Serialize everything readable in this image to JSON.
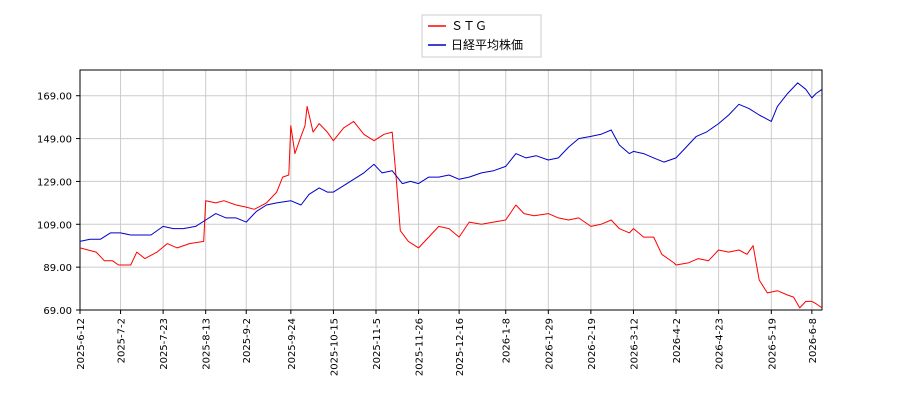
{
  "chart_data": {
    "type": "line",
    "title": "",
    "xlabel": "",
    "ylabel": "",
    "ylim": [
      69.0,
      181.0
    ],
    "yticks": [
      69.0,
      89.0,
      109.0,
      129.0,
      149.0,
      169.0
    ],
    "ytick_labels": [
      "69.00",
      "89.00",
      "109.00",
      "129.00",
      "149.00",
      "169.00"
    ],
    "xlim": [
      "2025-06-12",
      "2026-06-13"
    ],
    "xtick_labels": [
      "2025-6-12",
      "2025-7-2",
      "2025-7-23",
      "2025-8-13",
      "2025-9-2",
      "2025-9-24",
      "2025-10-15",
      "2025-11-5",
      "2025-11-26",
      "2025-12-16",
      "2026-1-8",
      "2026-1-29",
      "2026-2-19",
      "2026-3-12",
      "2026-4-2",
      "2026-4-23",
      "2026-5-19",
      "2026-6-8"
    ],
    "xtick_dates": [
      "2025-06-12",
      "2025-07-02",
      "2025-07-23",
      "2025-08-13",
      "2025-09-02",
      "2025-09-24",
      "2025-10-15",
      "2025-11-05",
      "2025-11-26",
      "2025-12-16",
      "2026-01-08",
      "2026-01-29",
      "2026-02-19",
      "2026-03-12",
      "2026-04-02",
      "2026-04-23",
      "2026-05-19",
      "2026-06-08"
    ],
    "grid": true,
    "legend_position": "top-center",
    "series": [
      {
        "name": "ＳＴＧ",
        "color": "#ff0000",
        "points": [
          [
            "2025-06-12",
            98
          ],
          [
            "2025-06-20",
            96
          ],
          [
            "2025-06-24",
            92
          ],
          [
            "2025-06-28",
            92
          ],
          [
            "2025-07-01",
            90
          ],
          [
            "2025-07-07",
            90
          ],
          [
            "2025-07-10",
            96
          ],
          [
            "2025-07-14",
            93
          ],
          [
            "2025-07-20",
            96
          ],
          [
            "2025-07-25",
            100
          ],
          [
            "2025-07-30",
            98
          ],
          [
            "2025-08-05",
            100
          ],
          [
            "2025-08-12",
            101
          ],
          [
            "2025-08-13",
            120
          ],
          [
            "2025-08-18",
            119
          ],
          [
            "2025-08-22",
            120
          ],
          [
            "2025-08-28",
            118
          ],
          [
            "2025-09-02",
            117
          ],
          [
            "2025-09-06",
            116
          ],
          [
            "2025-09-12",
            119
          ],
          [
            "2025-09-17",
            124
          ],
          [
            "2025-09-20",
            131
          ],
          [
            "2025-09-23",
            132
          ],
          [
            "2025-09-24",
            155
          ],
          [
            "2025-09-26",
            142
          ],
          [
            "2025-09-29",
            150
          ],
          [
            "2025-10-01",
            155
          ],
          [
            "2025-10-02",
            164
          ],
          [
            "2025-10-05",
            152
          ],
          [
            "2025-10-08",
            156
          ],
          [
            "2025-10-12",
            152
          ],
          [
            "2025-10-15",
            148
          ],
          [
            "2025-10-20",
            154
          ],
          [
            "2025-10-25",
            157
          ],
          [
            "2025-10-30",
            151
          ],
          [
            "2025-11-04",
            148
          ],
          [
            "2025-11-09",
            151
          ],
          [
            "2025-11-13",
            152
          ],
          [
            "2025-11-15",
            130
          ],
          [
            "2025-11-17",
            106
          ],
          [
            "2025-11-21",
            101
          ],
          [
            "2025-11-26",
            98
          ],
          [
            "2025-12-01",
            103
          ],
          [
            "2025-12-06",
            108
          ],
          [
            "2025-12-11",
            107
          ],
          [
            "2025-12-16",
            103
          ],
          [
            "2025-12-21",
            110
          ],
          [
            "2025-12-27",
            109
          ],
          [
            "2026-01-02",
            110
          ],
          [
            "2026-01-08",
            111
          ],
          [
            "2026-01-13",
            118
          ],
          [
            "2026-01-17",
            114
          ],
          [
            "2026-01-22",
            113
          ],
          [
            "2026-01-29",
            114
          ],
          [
            "2026-02-03",
            112
          ],
          [
            "2026-02-08",
            111
          ],
          [
            "2026-02-13",
            112
          ],
          [
            "2026-02-19",
            108
          ],
          [
            "2026-02-24",
            109
          ],
          [
            "2026-03-01",
            111
          ],
          [
            "2026-03-05",
            107
          ],
          [
            "2026-03-10",
            105
          ],
          [
            "2026-03-12",
            107
          ],
          [
            "2026-03-17",
            103
          ],
          [
            "2026-03-22",
            103
          ],
          [
            "2026-03-26",
            95
          ],
          [
            "2026-04-01",
            91
          ],
          [
            "2026-04-02",
            90
          ],
          [
            "2026-04-08",
            91
          ],
          [
            "2026-04-13",
            93
          ],
          [
            "2026-04-18",
            92
          ],
          [
            "2026-04-23",
            97
          ],
          [
            "2026-04-28",
            96
          ],
          [
            "2026-05-03",
            97
          ],
          [
            "2026-05-07",
            95
          ],
          [
            "2026-05-10",
            99
          ],
          [
            "2026-05-13",
            83
          ],
          [
            "2026-05-17",
            77
          ],
          [
            "2026-05-22",
            78
          ],
          [
            "2026-05-27",
            76
          ],
          [
            "2026-05-30",
            75
          ],
          [
            "2026-06-02",
            70
          ],
          [
            "2026-06-05",
            73
          ],
          [
            "2026-06-08",
            73
          ],
          [
            "2026-06-10",
            72
          ],
          [
            "2026-06-13",
            70
          ]
        ]
      },
      {
        "name": "日経平均株価",
        "color": "#0000cc",
        "points": [
          [
            "2025-06-12",
            101
          ],
          [
            "2025-06-17",
            102
          ],
          [
            "2025-06-22",
            102
          ],
          [
            "2025-06-27",
            105
          ],
          [
            "2025-07-02",
            105
          ],
          [
            "2025-07-07",
            104
          ],
          [
            "2025-07-12",
            104
          ],
          [
            "2025-07-17",
            104
          ],
          [
            "2025-07-23",
            108
          ],
          [
            "2025-07-28",
            107
          ],
          [
            "2025-08-02",
            107
          ],
          [
            "2025-08-08",
            108
          ],
          [
            "2025-08-13",
            111
          ],
          [
            "2025-08-18",
            114
          ],
          [
            "2025-08-23",
            112
          ],
          [
            "2025-08-28",
            112
          ],
          [
            "2025-09-02",
            110
          ],
          [
            "2025-09-07",
            115
          ],
          [
            "2025-09-12",
            118
          ],
          [
            "2025-09-17",
            119
          ],
          [
            "2025-09-24",
            120
          ],
          [
            "2025-09-29",
            118
          ],
          [
            "2025-10-03",
            123
          ],
          [
            "2025-10-08",
            126
          ],
          [
            "2025-10-12",
            124
          ],
          [
            "2025-10-15",
            124
          ],
          [
            "2025-10-20",
            127
          ],
          [
            "2025-10-25",
            130
          ],
          [
            "2025-10-30",
            133
          ],
          [
            "2025-11-04",
            137
          ],
          [
            "2025-11-08",
            133
          ],
          [
            "2025-11-13",
            134
          ],
          [
            "2025-11-18",
            128
          ],
          [
            "2025-11-22",
            129
          ],
          [
            "2025-11-26",
            128
          ],
          [
            "2025-12-01",
            131
          ],
          [
            "2025-12-06",
            131
          ],
          [
            "2025-12-11",
            132
          ],
          [
            "2025-12-16",
            130
          ],
          [
            "2025-12-21",
            131
          ],
          [
            "2025-12-27",
            133
          ],
          [
            "2026-01-02",
            134
          ],
          [
            "2026-01-08",
            136
          ],
          [
            "2026-01-13",
            142
          ],
          [
            "2026-01-18",
            140
          ],
          [
            "2026-01-23",
            141
          ],
          [
            "2026-01-29",
            139
          ],
          [
            "2026-02-03",
            140
          ],
          [
            "2026-02-08",
            145
          ],
          [
            "2026-02-13",
            149
          ],
          [
            "2026-02-19",
            150
          ],
          [
            "2026-02-24",
            151
          ],
          [
            "2026-03-01",
            153
          ],
          [
            "2026-03-05",
            146
          ],
          [
            "2026-03-10",
            142
          ],
          [
            "2026-03-12",
            143
          ],
          [
            "2026-03-17",
            142
          ],
          [
            "2026-03-22",
            140
          ],
          [
            "2026-03-27",
            138
          ],
          [
            "2026-04-02",
            140
          ],
          [
            "2026-04-07",
            145
          ],
          [
            "2026-04-12",
            150
          ],
          [
            "2026-04-17",
            152
          ],
          [
            "2026-04-23",
            156
          ],
          [
            "2026-04-28",
            160
          ],
          [
            "2026-05-03",
            165
          ],
          [
            "2026-05-08",
            163
          ],
          [
            "2026-05-13",
            160
          ],
          [
            "2026-05-19",
            157
          ],
          [
            "2026-05-22",
            164
          ],
          [
            "2026-05-27",
            170
          ],
          [
            "2026-06-01",
            175
          ],
          [
            "2026-06-05",
            172
          ],
          [
            "2026-06-08",
            168
          ],
          [
            "2026-06-10",
            170
          ],
          [
            "2026-06-13",
            172
          ]
        ]
      }
    ]
  }
}
